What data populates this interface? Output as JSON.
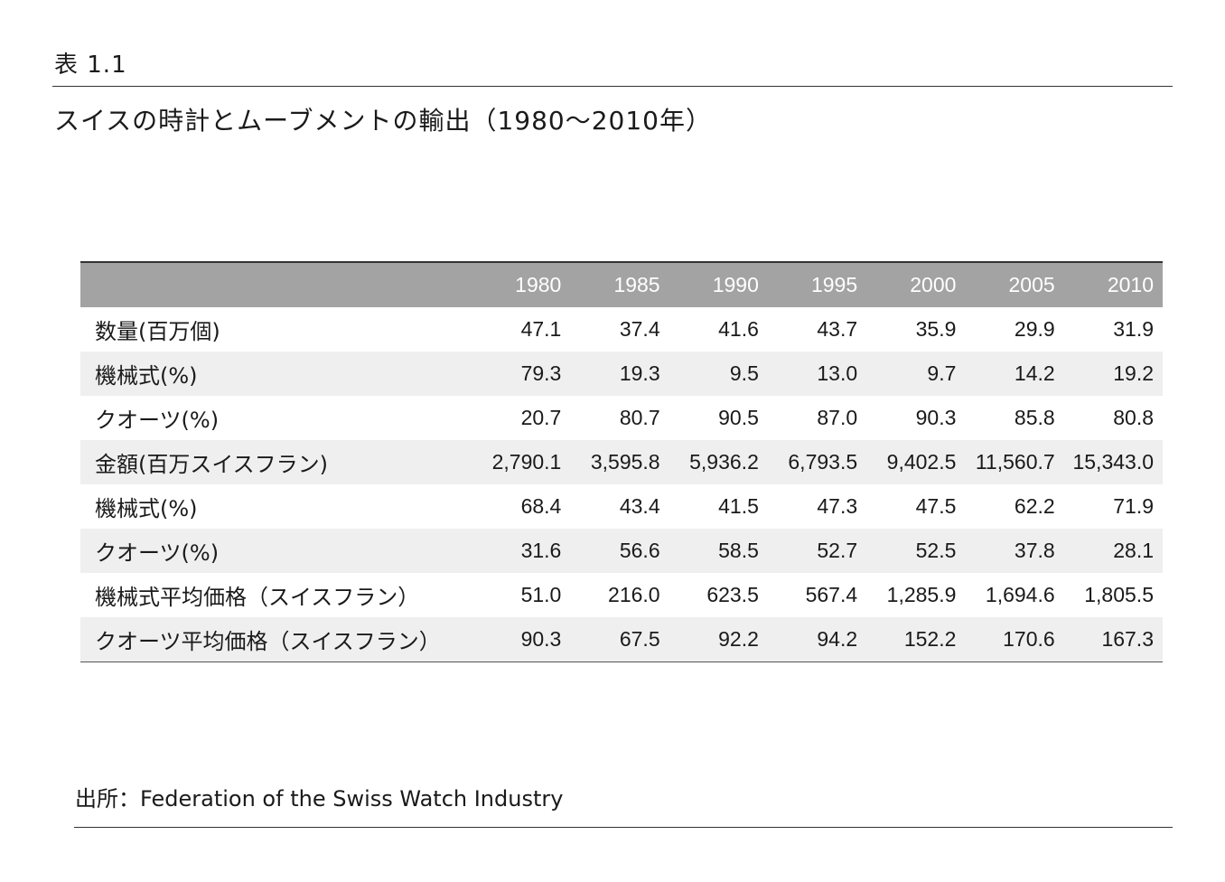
{
  "table_label": "表 1.1",
  "title": "スイスの時計とムーブメントの輸出（1980～2010年）",
  "table": {
    "headers": [
      "",
      "1980",
      "1985",
      "1990",
      "1995",
      "2000",
      "2005",
      "2010"
    ],
    "rows": [
      {
        "label": "数量(百万個)",
        "values": [
          "47.1",
          "37.4",
          "41.6",
          "43.7",
          "35.9",
          "29.9",
          "31.9"
        ]
      },
      {
        "label": "機械式(%)",
        "values": [
          "79.3",
          "19.3",
          "9.5",
          "13.0",
          "9.7",
          "14.2",
          "19.2"
        ]
      },
      {
        "label": "クオーツ(%)",
        "values": [
          "20.7",
          "80.7",
          "90.5",
          "87.0",
          "90.3",
          "85.8",
          "80.8"
        ]
      },
      {
        "label": "金額(百万スイスフラン)",
        "values": [
          "2,790.1",
          "3,595.8",
          "5,936.2",
          "6,793.5",
          "9,402.5",
          "11,560.7",
          "15,343.0"
        ]
      },
      {
        "label": "機械式(%)",
        "values": [
          "68.4",
          "43.4",
          "41.5",
          "47.3",
          "47.5",
          "62.2",
          "71.9"
        ]
      },
      {
        "label": "クオーツ(%)",
        "values": [
          "31.6",
          "56.6",
          "58.5",
          "52.7",
          "52.5",
          "37.8",
          "28.1"
        ]
      },
      {
        "label": "機械式平均価格（スイスフラン）",
        "values": [
          "51.0",
          "216.0",
          "623.5",
          "567.4",
          "1,285.9",
          "1,694.6",
          "1,805.5"
        ]
      },
      {
        "label": "クオーツ平均価格（スイスフラン）",
        "values": [
          "90.3",
          "67.5",
          "92.2",
          "94.2",
          "152.2",
          "170.6",
          "167.3"
        ]
      }
    ]
  },
  "source": "出所：Federation of the Swiss Watch Industry"
}
